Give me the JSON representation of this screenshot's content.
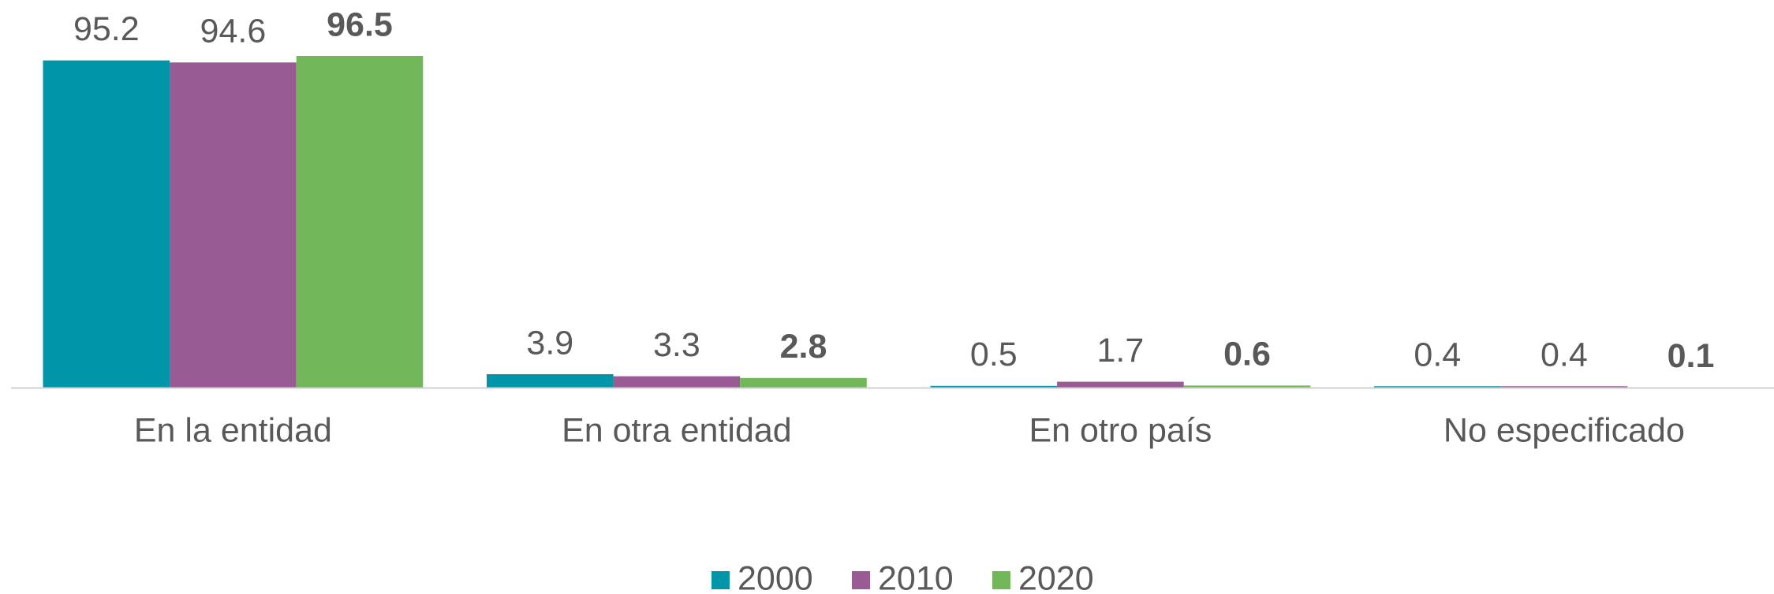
{
  "chart_data": {
    "type": "bar",
    "categories": [
      "En la entidad",
      "En otra entidad",
      "En otro país",
      "No especificado"
    ],
    "series": [
      {
        "name": "2000",
        "color": "#0095a8",
        "values": [
          95.2,
          3.9,
          0.5,
          0.4
        ]
      },
      {
        "name": "2010",
        "color": "#985b94",
        "values": [
          94.6,
          3.3,
          1.7,
          0.4
        ]
      },
      {
        "name": "2020",
        "color": "#72b85a",
        "values": [
          96.5,
          2.8,
          0.6,
          0.1
        ],
        "bold": true
      }
    ],
    "legend": "bottom"
  }
}
